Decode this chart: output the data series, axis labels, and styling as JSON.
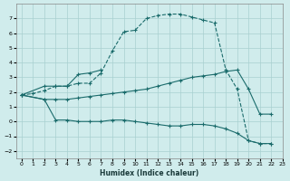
{
  "xlabel": "Humidex (Indice chaleur)",
  "bg_color": "#d0ecec",
  "grid_color": "#a8d0d0",
  "line_color": "#1a6b6b",
  "xlim": [
    -0.5,
    23
  ],
  "ylim": [
    -2.5,
    8.0
  ],
  "xticks": [
    0,
    1,
    2,
    3,
    4,
    5,
    6,
    7,
    8,
    9,
    10,
    11,
    12,
    13,
    14,
    15,
    16,
    17,
    18,
    19,
    20,
    21,
    22,
    23
  ],
  "yticks": [
    -2,
    -1,
    0,
    1,
    2,
    3,
    4,
    5,
    6,
    7
  ],
  "series": [
    {
      "x": [
        0,
        1,
        2,
        3,
        4,
        5,
        6,
        7,
        8,
        9,
        10,
        11,
        12,
        13,
        14,
        15,
        16,
        17,
        18,
        19,
        20,
        21,
        22
      ],
      "y": [
        1.8,
        1.9,
        2.1,
        2.4,
        2.4,
        2.6,
        2.6,
        3.3,
        4.8,
        6.1,
        6.2,
        7.0,
        7.2,
        7.3,
        7.3,
        7.1,
        6.9,
        6.7,
        3.5,
        2.2,
        -1.3,
        -1.5,
        -1.5
      ],
      "linestyle": "--"
    },
    {
      "x": [
        0,
        2,
        3,
        4,
        5,
        6,
        7
      ],
      "y": [
        1.8,
        2.4,
        2.4,
        2.4,
        3.2,
        3.3,
        3.5
      ],
      "linestyle": "-"
    },
    {
      "x": [
        0,
        2,
        3,
        4,
        5,
        6,
        7,
        8,
        9,
        10,
        11,
        12,
        13,
        14,
        15,
        16,
        17,
        18,
        19,
        20,
        21,
        22
      ],
      "y": [
        1.8,
        1.5,
        1.5,
        1.5,
        1.6,
        1.7,
        1.8,
        1.9,
        2.0,
        2.1,
        2.2,
        2.4,
        2.6,
        2.8,
        3.0,
        3.1,
        3.2,
        3.4,
        3.5,
        2.2,
        0.5,
        0.5
      ],
      "linestyle": "-"
    },
    {
      "x": [
        0,
        2,
        3,
        4,
        5,
        6,
        7,
        8,
        9,
        10,
        11,
        12,
        13,
        14,
        15,
        16,
        17,
        18,
        19,
        20,
        21,
        22
      ],
      "y": [
        1.8,
        1.5,
        0.1,
        0.1,
        0.0,
        0.0,
        0.0,
        0.1,
        0.1,
        0.0,
        -0.1,
        -0.2,
        -0.3,
        -0.3,
        -0.2,
        -0.2,
        -0.3,
        -0.5,
        -0.8,
        -1.3,
        -1.5,
        -1.5
      ],
      "linestyle": "-"
    }
  ]
}
